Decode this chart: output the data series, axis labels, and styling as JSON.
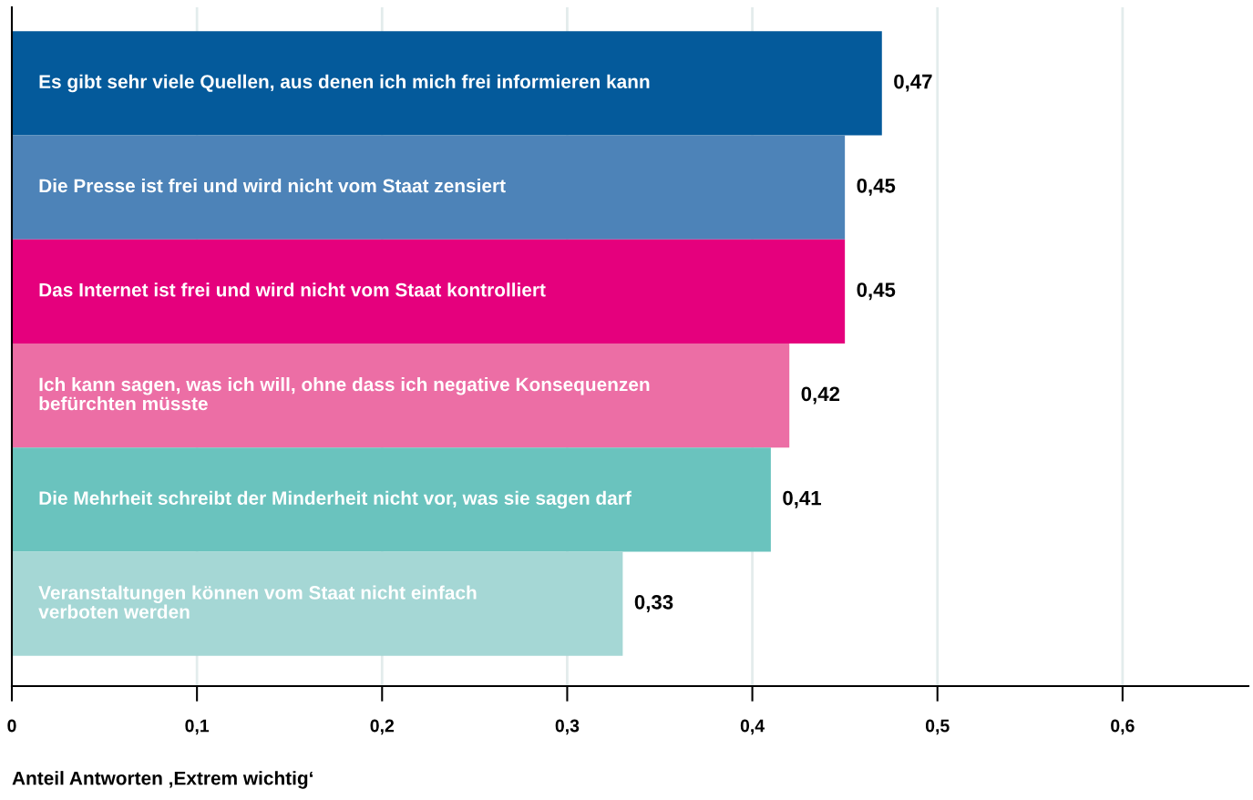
{
  "chart_data": {
    "type": "bar",
    "orientation": "horizontal",
    "xlabel": "Anteil Antworten ‚Extrem wichtig‘",
    "categories": [
      "Es gibt sehr viele Quellen, aus denen ich mich frei informieren kann",
      "Die Presse ist frei und wird nicht vom Staat zensiert",
      "Das Internet ist frei und wird nicht vom Staat kontrolliert",
      "Ich kann sagen, was ich will, ohne dass ich negative Konsequenzen\nbefürchten müsste",
      "Die Mehrheit schreibt der Minderheit nicht vor, was sie sagen darf",
      "Veranstaltungen können vom Staat nicht einfach\nverboten werden"
    ],
    "values": [
      0.47,
      0.45,
      0.45,
      0.42,
      0.41,
      0.33
    ],
    "value_labels": [
      "0,47",
      "0,45",
      "0,45",
      "0,42",
      "0,41",
      "0,33"
    ],
    "colors": [
      "#045a9b",
      "#4d83b8",
      "#e5007d",
      "#ec6ea5",
      "#6ac3be",
      "#a5d7d5"
    ],
    "xlim": [
      0,
      0.668
    ],
    "xticks": [
      0,
      {
        "value": 0.1,
        "label": "0,1"
      },
      {
        "value": 0.2,
        "label": "0,2"
      },
      {
        "value": 0.3,
        "label": "0,3"
      },
      {
        "value": 0.4,
        "label": "0,4"
      },
      {
        "value": 0.5,
        "label": "0,5"
      },
      {
        "value": 0.6,
        "label": "0,6"
      }
    ],
    "grid": "x",
    "legend": false
  }
}
